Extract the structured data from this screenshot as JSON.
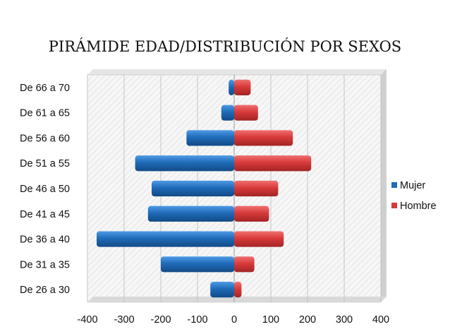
{
  "chart_data": {
    "type": "bar",
    "orientation": "horizontal",
    "title": "PIRÁMIDE EDAD/DISTRIBUCIÓN POR SEXOS",
    "categories": [
      "De 26 a 30",
      "De 31 a 35",
      "De 36 a 40",
      "De 41 a 45",
      "De 46 a 50",
      "De 51 a 55",
      "De 56 a 60",
      "De 61 a 65",
      "De 66 a 70"
    ],
    "series": [
      {
        "name": "Mujer",
        "color": "#1F6BB8",
        "values": [
          -65,
          -200,
          -375,
          -235,
          -225,
          -270,
          -130,
          -35,
          -15
        ]
      },
      {
        "name": "Hombre",
        "color": "#D83A3A",
        "values": [
          20,
          55,
          135,
          95,
          120,
          210,
          160,
          65,
          45
        ]
      }
    ],
    "xlim": [
      -400,
      400
    ],
    "xticks": [
      -400,
      -300,
      -200,
      -100,
      0,
      100,
      200,
      300,
      400
    ],
    "grid": true,
    "legend_position": "right"
  }
}
